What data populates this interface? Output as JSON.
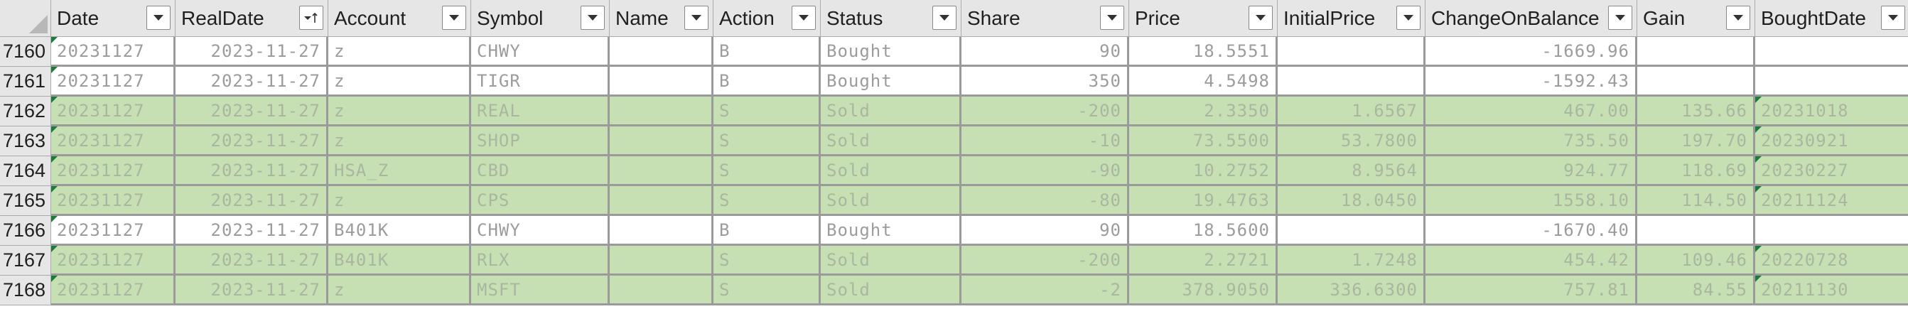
{
  "columns": [
    {
      "key": "Date",
      "label": "Date"
    },
    {
      "key": "RealDate",
      "label": "RealDate",
      "sorted": "desc"
    },
    {
      "key": "Account",
      "label": "Account"
    },
    {
      "key": "Symbol",
      "label": "Symbol"
    },
    {
      "key": "Name",
      "label": "Name"
    },
    {
      "key": "Action",
      "label": "Action"
    },
    {
      "key": "Status",
      "label": "Status"
    },
    {
      "key": "Share",
      "label": "Share"
    },
    {
      "key": "Price",
      "label": "Price"
    },
    {
      "key": "InitialPrice",
      "label": "InitialPrice"
    },
    {
      "key": "ChangeOnBalance",
      "label": "ChangeOnBalance"
    },
    {
      "key": "Gain",
      "label": "Gain"
    },
    {
      "key": "BoughtDate",
      "label": "BoughtDate"
    }
  ],
  "colors": {
    "sold_row": "#c6e0b4",
    "header": "#e6e6e6",
    "flag": "#1b7a3c"
  },
  "rows": [
    {
      "rownum": "7160",
      "sold": false,
      "cells": [
        "20231127",
        "2023-11-27",
        "z",
        "CHWY",
        "",
        "B",
        "Bought",
        "90",
        "18.5551",
        "",
        "-1669.96",
        "",
        ""
      ]
    },
    {
      "rownum": "7161",
      "sold": false,
      "cells": [
        "20231127",
        "2023-11-27",
        "z",
        "TIGR",
        "",
        "B",
        "Bought",
        "350",
        "4.5498",
        "",
        "-1592.43",
        "",
        ""
      ]
    },
    {
      "rownum": "7162",
      "sold": true,
      "cells": [
        "20231127",
        "2023-11-27",
        "z",
        "REAL",
        "",
        "S",
        "Sold",
        "-200",
        "2.3350",
        "1.6567",
        "467.00",
        "135.66",
        "20231018"
      ]
    },
    {
      "rownum": "7163",
      "sold": true,
      "cells": [
        "20231127",
        "2023-11-27",
        "z",
        "SHOP",
        "",
        "S",
        "Sold",
        "-10",
        "73.5500",
        "53.7800",
        "735.50",
        "197.70",
        "20230921"
      ]
    },
    {
      "rownum": "7164",
      "sold": true,
      "cells": [
        "20231127",
        "2023-11-27",
        "HSA_Z",
        "CBD",
        "",
        "S",
        "Sold",
        "-90",
        "10.2752",
        "8.9564",
        "924.77",
        "118.69",
        "20230227"
      ]
    },
    {
      "rownum": "7165",
      "sold": true,
      "cells": [
        "20231127",
        "2023-11-27",
        "z",
        "CPS",
        "",
        "S",
        "Sold",
        "-80",
        "19.4763",
        "18.0450",
        "1558.10",
        "114.50",
        "20211124"
      ]
    },
    {
      "rownum": "7166",
      "sold": false,
      "cells": [
        "20231127",
        "2023-11-27",
        "B401K",
        "CHWY",
        "",
        "B",
        "Bought",
        "90",
        "18.5600",
        "",
        "-1670.40",
        "",
        ""
      ]
    },
    {
      "rownum": "7167",
      "sold": true,
      "cells": [
        "20231127",
        "2023-11-27",
        "B401K",
        "RLX",
        "",
        "S",
        "Sold",
        "-200",
        "2.2721",
        "1.7248",
        "454.42",
        "109.46",
        "20220728"
      ]
    },
    {
      "rownum": "7168",
      "sold": true,
      "cells": [
        "20231127",
        "2023-11-27",
        "z",
        "MSFT",
        "",
        "S",
        "Sold",
        "-2",
        "378.9050",
        "336.6300",
        "757.81",
        "84.55",
        "20211130"
      ]
    }
  ]
}
